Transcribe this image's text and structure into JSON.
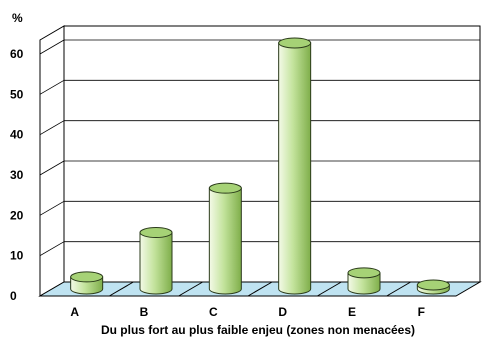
{
  "chart_data": {
    "type": "bar",
    "title": "",
    "ylabel": "%",
    "xlabel": "Du plus fort au plus faible enjeu (zones non menacées)",
    "categories": [
      "A",
      "B",
      "C",
      "D",
      "E",
      "F"
    ],
    "values": [
      3,
      14,
      25,
      61,
      4,
      1
    ],
    "ylim": [
      0,
      60
    ],
    "yticks": [
      0,
      10,
      20,
      30,
      40,
      50,
      60
    ],
    "grid": true,
    "legend": "none",
    "colors": {
      "bar_light": "#f4fae8",
      "bar_mid": "#c3e39c",
      "bar_dark": "#7fae4a",
      "bar_top": "#a6d276",
      "floor": "#bfe3f1",
      "wall": "#ffffff",
      "grid": "#000000"
    }
  }
}
